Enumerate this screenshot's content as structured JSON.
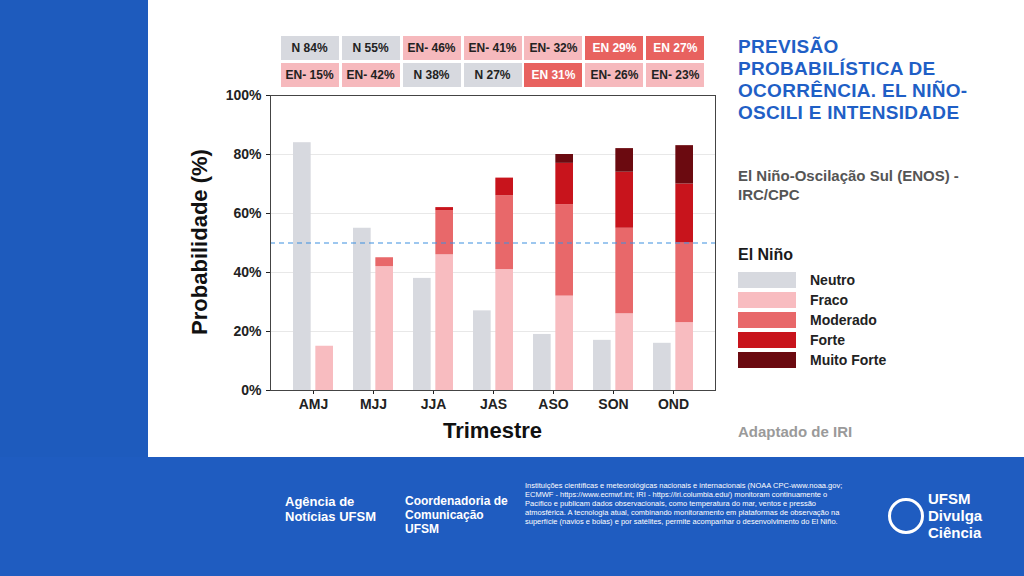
{
  "chart_data": {
    "type": "bar",
    "title": "PREVISÃO PROBABILÍSTICA DE OCORRÊNCIA. EL NIÑO-OSCILI E INTENSIDADE",
    "subtitle": "El Niño-Oscilação Sul (ENOS) -IRC/CPC",
    "x_label": "Trimestre",
    "y_label": "Probabilidade (%)",
    "categories": [
      "AMJ",
      "MJJ",
      "JJA",
      "JAS",
      "ASO",
      "SON",
      "OND"
    ],
    "series": [
      {
        "name": "Neutro",
        "color": "#d7d9df",
        "values": [
          84,
          55,
          38,
          27,
          19,
          17,
          16
        ]
      },
      {
        "name": "El Niño",
        "stacked": true,
        "series": [
          {
            "name": "Fraco",
            "color": "#f8bcc0",
            "values": [
              15,
              42,
              46,
              41,
              32,
              26,
              23
            ]
          },
          {
            "name": "Moderado",
            "color": "#e8686a",
            "values": [
              0,
              3,
              15,
              25,
              31,
              29,
              27
            ]
          },
          {
            "name": "Forte",
            "color": "#c8141c",
            "values": [
              0,
              0,
              1,
              6,
              14,
              19,
              20
            ]
          },
          {
            "name": "Muito Forte",
            "color": "#6b0a10",
            "values": [
              0,
              0,
              0,
              0,
              3,
              8,
              13
            ]
          }
        ]
      }
    ],
    "ylim": [
      0,
      100
    ],
    "yticks": [
      {
        "value": 0,
        "label": "0%"
      },
      {
        "value": 20,
        "label": "20%"
      },
      {
        "value": 40,
        "label": "40%"
      },
      {
        "value": 60,
        "label": "60%"
      },
      {
        "value": 80,
        "label": "80%"
      },
      {
        "value": 100,
        "label": "100%"
      }
    ],
    "grid": true,
    "legend": "right",
    "hline": {
      "value": 50,
      "color": "#3d8fe0",
      "line_style": "dashed"
    },
    "annotations": [
      [
        {
          "text": "N 84%",
          "color": "#d7d9df"
        },
        {
          "text": "N 55%",
          "color": "#d7d9df"
        },
        {
          "text": "EN- 46%",
          "color": "#f6b9bd"
        },
        {
          "text": "EN- 41%",
          "color": "#f6b9bd"
        },
        {
          "text": "EN- 32%",
          "color": "#f6b9bd"
        },
        {
          "text": "EN 29%",
          "color": "#e8625f"
        },
        {
          "text": "EN 27%",
          "color": "#e8625f"
        }
      ],
      [
        {
          "text": "EN- 15%",
          "color": "#f6b9bd"
        },
        {
          "text": "EN- 42%",
          "color": "#f6b9bd"
        },
        {
          "text": "N 38%",
          "color": "#d7d9df"
        },
        {
          "text": "N 27%",
          "color": "#d7d9df"
        },
        {
          "text": "EN 31%",
          "color": "#e8625f"
        },
        {
          "text": "EN- 26%",
          "color": "#f6b9bd"
        },
        {
          "text": "EN- 23%",
          "color": "#f6b9bd"
        }
      ]
    ],
    "source": "Adaptado de IRI"
  },
  "footer": {
    "logos": [
      "Agência de Notícias UFSM",
      "Coordenadoria de Comunicação UFSM"
    ],
    "text": "Instituições científicas e meteorológicas nacionais e internacionais (NOAA CPC-www.noaa.gov; ECMWF - https://www.ecmwf.int; IRI - https://iri.columbia.edu/) monitoram continuamente o Pacífico e publicam dados observacionais, como temperatura do mar, ventos e pressão atmosférica. A tecnologia atual, combinando monitoramento em plataformas de observação na superfície (navios e boias) e por satélites, permite acompanhar o desenvolvimento do El Niño.",
    "brand": "UFSM Divulga Ciência"
  }
}
